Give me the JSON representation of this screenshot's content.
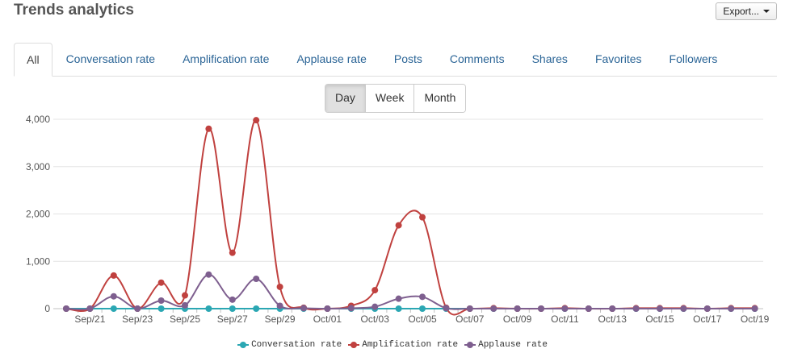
{
  "header": {
    "title": "Trends analytics",
    "export_label": "Export..."
  },
  "tabs": [
    {
      "label": "All",
      "active": true
    },
    {
      "label": "Conversation rate"
    },
    {
      "label": "Amplification rate"
    },
    {
      "label": "Applause rate"
    },
    {
      "label": "Posts"
    },
    {
      "label": "Comments"
    },
    {
      "label": "Shares"
    },
    {
      "label": "Favorites"
    },
    {
      "label": "Followers"
    }
  ],
  "period": {
    "options": [
      "Day",
      "Week",
      "Month"
    ],
    "selected": "Day"
  },
  "chart_data": {
    "type": "line",
    "title": "",
    "xlabel": "",
    "ylabel": "",
    "ylim": [
      0,
      4000
    ],
    "yticks": [
      "0",
      "1,000",
      "2,000",
      "3,000",
      "4,000"
    ],
    "x": [
      "Sep 20",
      "Sep 21",
      "Sep 22",
      "Sep 23",
      "Sep 24",
      "Sep 25",
      "Sep 26",
      "Sep 27",
      "Sep 28",
      "Sep 29",
      "Sep 30",
      "Oct 1",
      "Oct 2",
      "Oct 3",
      "Oct 4",
      "Oct 5",
      "Oct 6",
      "Oct 7",
      "Oct 8",
      "Oct 9",
      "Oct 10",
      "Oct 11",
      "Oct 12",
      "Oct 13",
      "Oct 14",
      "Oct 15",
      "Oct 16",
      "Oct 17",
      "Oct 18",
      "Oct 19"
    ],
    "xtick_labels": [
      "Sep/21",
      "Sep/23",
      "Sep/25",
      "Sep/27",
      "Sep/29",
      "Oct/01",
      "Oct/03",
      "Oct/05",
      "Oct/07",
      "Oct/09",
      "Oct/11",
      "Oct/13",
      "Oct/15",
      "Oct/17",
      "Oct/19"
    ],
    "grid": true,
    "legend": "bottom",
    "series": [
      {
        "name": "Conversation rate",
        "color": "#2ba7b3",
        "values": [
          0,
          0,
          0,
          0,
          0,
          0,
          0,
          0,
          0,
          0,
          0,
          0,
          0,
          0,
          0,
          0,
          0,
          0,
          0,
          0,
          0,
          0,
          0,
          0,
          0,
          0,
          0,
          0,
          0,
          0
        ]
      },
      {
        "name": "Amplification rate",
        "color": "#c0413f",
        "values": [
          0,
          0,
          700,
          0,
          550,
          280,
          3800,
          1180,
          3980,
          460,
          20,
          0,
          60,
          390,
          1760,
          1930,
          20,
          0,
          10,
          0,
          0,
          10,
          0,
          0,
          10,
          10,
          10,
          0,
          10,
          10
        ]
      },
      {
        "name": "Applause rate",
        "color": "#7e5f8f",
        "values": [
          0,
          0,
          260,
          0,
          170,
          70,
          720,
          190,
          630,
          60,
          10,
          0,
          10,
          40,
          210,
          250,
          10,
          0,
          0,
          0,
          0,
          0,
          0,
          0,
          0,
          0,
          0,
          0,
          0,
          0
        ]
      }
    ]
  }
}
